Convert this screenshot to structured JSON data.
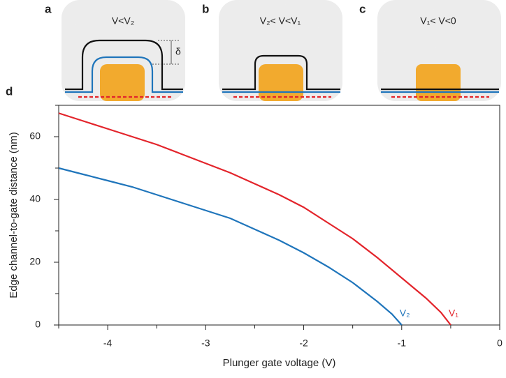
{
  "panels": [
    {
      "letter": "a",
      "title": "V<V₂",
      "marker": "δ"
    },
    {
      "letter": "b",
      "title": "V₂< V<V₁"
    },
    {
      "letter": "c",
      "title": "V₁< V<0"
    }
  ],
  "chart_data": {
    "type": "line",
    "letter": "d",
    "x_label": "Plunger gate voltage (V)",
    "y_label": "Edge channel-to-gate distance (nm)",
    "xlim": [
      -4.5,
      0
    ],
    "ylim": [
      0,
      70
    ],
    "xticks": [
      -4,
      -3,
      -2,
      -1,
      0
    ],
    "yticks": [
      0,
      20,
      40,
      60
    ],
    "xminorticks": [
      -4.5,
      -3.5,
      -2.5,
      -1.5,
      -0.5
    ],
    "yminorticks": [
      10,
      30,
      50,
      70
    ],
    "series": [
      {
        "name": "V₁",
        "color": "#e3242b",
        "x": [
          -4.5,
          -4.25,
          -4,
          -3.75,
          -3.5,
          -3.25,
          -3,
          -2.75,
          -2.5,
          -2.25,
          -2,
          -1.75,
          -1.5,
          -1.25,
          -1,
          -0.75,
          -0.6,
          -0.5
        ],
        "values": [
          67.5,
          65,
          62.5,
          60,
          57.5,
          54.5,
          51.5,
          48.5,
          45,
          41.5,
          37.5,
          32.5,
          27.5,
          21.5,
          15,
          8.5,
          4,
          0
        ]
      },
      {
        "name": "V₂",
        "color": "#1f75bb",
        "x": [
          -4.5,
          -4.25,
          -4,
          -3.75,
          -3.5,
          -3.25,
          -3,
          -2.75,
          -2.5,
          -2.25,
          -2,
          -1.75,
          -1.5,
          -1.25,
          -1.1,
          -1
        ],
        "values": [
          50,
          48,
          46,
          44,
          41.5,
          39,
          36.5,
          34,
          30.5,
          27,
          23,
          18.5,
          13.5,
          7.5,
          3.5,
          0
        ]
      }
    ]
  }
}
